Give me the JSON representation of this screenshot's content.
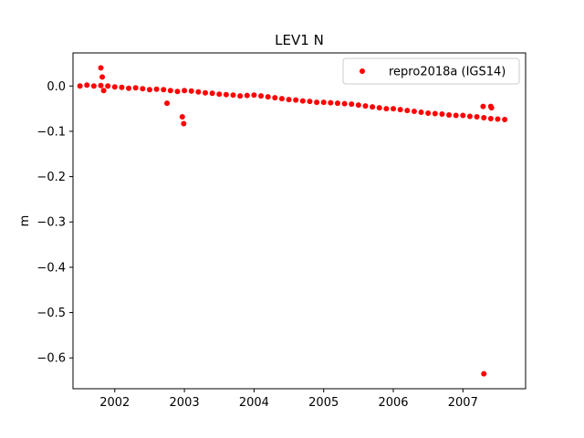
{
  "chart_data": {
    "type": "scatter",
    "title": "LEV1 N",
    "xlabel": "",
    "ylabel": "m",
    "xlim": [
      2001.4,
      2007.9
    ],
    "ylim": [
      -0.668,
      0.073
    ],
    "xticks": [
      2002,
      2003,
      2004,
      2005,
      2006,
      2007
    ],
    "yticks": [
      0.0,
      -0.1,
      -0.2,
      -0.3,
      -0.4,
      -0.5,
      -0.6
    ],
    "ytick_labels": [
      "0.0",
      "−0.1",
      "−0.2",
      "−0.3",
      "−0.4",
      "−0.5",
      "−0.6"
    ],
    "legend_position": "top-right",
    "grid": false,
    "series": [
      {
        "name": "repro2018a (IGS14)",
        "color": "#ff0000",
        "marker": "circle",
        "x": [
          2001.5,
          2001.6,
          2001.7,
          2001.8,
          2001.9,
          2002.0,
          2002.1,
          2002.2,
          2002.3,
          2002.4,
          2002.5,
          2002.6,
          2002.7,
          2002.8,
          2002.9,
          2003.0,
          2003.1,
          2003.2,
          2003.3,
          2003.4,
          2003.5,
          2003.6,
          2003.7,
          2003.8,
          2003.9,
          2004.0,
          2004.1,
          2004.2,
          2004.3,
          2004.4,
          2004.5,
          2004.6,
          2004.7,
          2004.8,
          2004.9,
          2005.0,
          2005.1,
          2005.2,
          2005.3,
          2005.4,
          2005.5,
          2005.6,
          2005.7,
          2005.8,
          2005.9,
          2006.0,
          2006.1,
          2006.2,
          2006.3,
          2006.4,
          2006.5,
          2006.6,
          2006.7,
          2006.8,
          2006.9,
          2007.0,
          2007.1,
          2007.2,
          2007.3,
          2007.4,
          2007.5,
          2007.6,
          2001.8,
          2001.82,
          2001.84,
          2002.75,
          2002.97,
          2002.99,
          2007.3,
          2007.4,
          2007.41,
          2007.29
        ],
        "y": [
          0.0,
          0.002,
          0.0,
          0.001,
          0.0,
          -0.002,
          -0.003,
          -0.005,
          -0.004,
          -0.006,
          -0.008,
          -0.007,
          -0.008,
          -0.01,
          -0.012,
          -0.01,
          -0.011,
          -0.013,
          -0.015,
          -0.016,
          -0.018,
          -0.019,
          -0.02,
          -0.022,
          -0.021,
          -0.02,
          -0.022,
          -0.024,
          -0.026,
          -0.028,
          -0.03,
          -0.031,
          -0.033,
          -0.034,
          -0.036,
          -0.036,
          -0.037,
          -0.038,
          -0.039,
          -0.04,
          -0.042,
          -0.044,
          -0.046,
          -0.048,
          -0.05,
          -0.05,
          -0.052,
          -0.054,
          -0.056,
          -0.058,
          -0.06,
          -0.061,
          -0.062,
          -0.064,
          -0.065,
          -0.065,
          -0.067,
          -0.068,
          -0.07,
          -0.072,
          -0.073,
          -0.074,
          0.04,
          0.02,
          -0.01,
          -0.038,
          -0.068,
          -0.083,
          -0.635,
          -0.045,
          -0.048,
          -0.045
        ]
      }
    ]
  }
}
